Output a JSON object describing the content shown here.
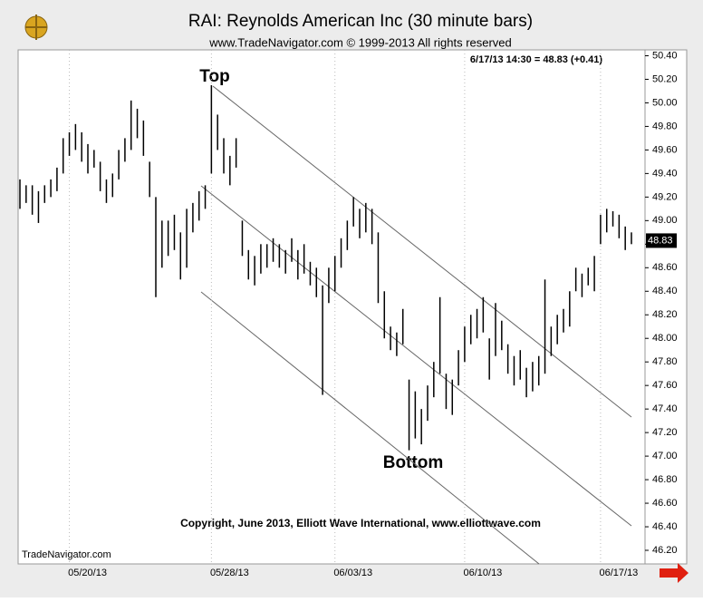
{
  "chart_data": {
    "type": "ohlc",
    "title": "RAI:  Reynolds American Inc  (30 minute bars)",
    "subtitle": "www.TradeNavigator.com © 1999-2013 All rights reserved",
    "info": "6/17/13 14:30 = 48.83 (+0.41)",
    "last_price": 48.83,
    "annotations": [
      "Top",
      "Bottom"
    ],
    "copyright": "Copyright, June 2013, Elliott Wave International, www.elliottwave.com",
    "source": "TradeNavigator.com",
    "color": "#000000",
    "ylim": [
      46.1,
      50.45
    ],
    "yticks": [
      {
        "value": 46.2,
        "label": "46.20"
      },
      {
        "value": 46.4,
        "label": "46.40"
      },
      {
        "value": 46.6,
        "label": "46.60"
      },
      {
        "value": 46.8,
        "label": "46.80"
      },
      {
        "value": 47.0,
        "label": "47.00"
      },
      {
        "value": 47.2,
        "label": "47.20"
      },
      {
        "value": 47.4,
        "label": "47.40"
      },
      {
        "value": 47.6,
        "label": "47.60"
      },
      {
        "value": 47.8,
        "label": "47.80"
      },
      {
        "value": 48.0,
        "label": "48.00"
      },
      {
        "value": 48.2,
        "label": "48.20"
      },
      {
        "value": 48.4,
        "label": "48.40"
      },
      {
        "value": 48.6,
        "label": "48.60"
      },
      {
        "value": 48.8,
        "label": "48.80"
      },
      {
        "value": 49.0,
        "label": "49.00"
      },
      {
        "value": 49.2,
        "label": "49.20"
      },
      {
        "value": 49.4,
        "label": "49.40"
      },
      {
        "value": 49.6,
        "label": "49.60"
      },
      {
        "value": 49.8,
        "label": "49.80"
      },
      {
        "value": 50.0,
        "label": "50.00"
      },
      {
        "value": 50.2,
        "label": "50.20"
      },
      {
        "value": 50.4,
        "label": "50.40"
      }
    ],
    "categories": [
      null,
      null,
      null,
      null,
      null,
      null,
      null,
      null,
      "05/20/13",
      null,
      null,
      null,
      null,
      null,
      null,
      null,
      null,
      null,
      null,
      null,
      null,
      null,
      null,
      null,
      null,
      null,
      null,
      null,
      null,
      null,
      null,
      "05/28/13",
      null,
      null,
      null,
      null,
      null,
      null,
      null,
      null,
      null,
      null,
      null,
      null,
      null,
      null,
      null,
      null,
      null,
      null,
      null,
      "06/03/13",
      null,
      null,
      null,
      null,
      null,
      null,
      null,
      null,
      null,
      null,
      null,
      null,
      null,
      null,
      null,
      null,
      null,
      null,
      null,
      null,
      "06/10/13",
      null,
      null,
      null,
      null,
      null,
      null,
      null,
      null,
      null,
      null,
      null,
      null,
      null,
      null,
      null,
      null,
      null,
      null,
      null,
      null,
      null,
      "06/17/13",
      null,
      null,
      null,
      null,
      null
    ],
    "low": [
      49.1,
      49.15,
      49.05,
      48.98,
      49.15,
      49.2,
      49.25,
      49.4,
      49.55,
      49.6,
      49.5,
      49.4,
      49.45,
      49.25,
      49.15,
      49.2,
      49.35,
      49.5,
      49.6,
      49.7,
      49.55,
      49.2,
      48.35,
      48.6,
      48.7,
      48.75,
      48.5,
      48.6,
      48.9,
      49.0,
      49.1,
      49.4,
      49.6,
      49.4,
      49.3,
      49.45,
      48.7,
      48.5,
      48.45,
      48.55,
      48.6,
      48.65,
      48.6,
      48.55,
      48.65,
      48.5,
      48.55,
      48.45,
      48.35,
      47.52,
      48.3,
      48.4,
      48.6,
      48.75,
      48.95,
      48.85,
      48.9,
      48.8,
      48.3,
      48.0,
      47.9,
      47.85,
      47.95,
      47.05,
      47.15,
      47.1,
      47.3,
      47.5,
      47.7,
      47.4,
      47.35,
      47.6,
      47.8,
      47.95,
      48.0,
      48.05,
      47.65,
      47.85,
      47.9,
      47.7,
      47.6,
      47.65,
      47.5,
      47.55,
      47.6,
      47.7,
      47.85,
      47.95,
      48.05,
      48.1,
      48.4,
      48.35,
      48.45,
      48.4,
      48.8,
      48.9,
      48.95,
      48.85,
      48.75,
      48.8
    ],
    "high": [
      49.35,
      49.3,
      49.3,
      49.25,
      49.3,
      49.35,
      49.45,
      49.7,
      49.75,
      49.82,
      49.75,
      49.65,
      49.6,
      49.5,
      49.35,
      49.4,
      49.6,
      49.7,
      50.02,
      49.95,
      49.85,
      49.5,
      49.2,
      49.0,
      49.0,
      49.05,
      48.9,
      49.1,
      49.15,
      49.25,
      49.3,
      50.15,
      49.9,
      49.7,
      49.55,
      49.7,
      49.0,
      48.75,
      48.7,
      48.8,
      48.8,
      48.85,
      48.8,
      48.75,
      48.85,
      48.75,
      48.8,
      48.65,
      48.6,
      48.45,
      48.6,
      48.7,
      48.85,
      49.0,
      49.2,
      49.1,
      49.15,
      49.1,
      48.9,
      48.4,
      48.1,
      48.05,
      48.25,
      47.65,
      47.55,
      47.4,
      47.6,
      47.8,
      48.35,
      47.7,
      47.65,
      47.9,
      48.1,
      48.2,
      48.25,
      48.35,
      48.0,
      48.3,
      48.15,
      47.95,
      47.85,
      47.9,
      47.75,
      47.8,
      47.85,
      48.5,
      48.1,
      48.2,
      48.25,
      48.4,
      48.6,
      48.55,
      48.6,
      48.7,
      49.05,
      49.1,
      49.08,
      49.05,
      48.95,
      48.9
    ]
  }
}
